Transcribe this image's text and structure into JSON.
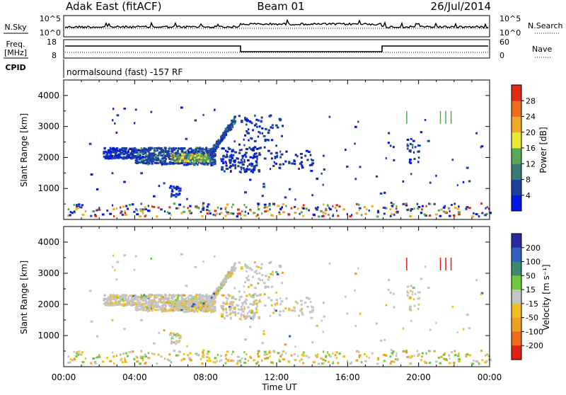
{
  "header": {
    "station": "Adak East (fitACF)",
    "beam": "Beam 01",
    "date": "26/Jul/2014"
  },
  "status_panels": {
    "nsky_label": "N.Sky",
    "nsky_ticks": [
      "10^5",
      "10^0"
    ],
    "nsearch_label": "N.Search",
    "nsearch_ticks": [
      "10^5",
      "10^0"
    ],
    "freq_label": "Freq.",
    "freq_unit": "[MHz]",
    "freq_ticks": [
      "18",
      "8"
    ],
    "nave_label": "Nave",
    "nave_ticks": [
      "60",
      "0"
    ],
    "cpid_label": "CPID",
    "cpid_text": "normalsound (fast) -157 RF"
  },
  "x_axis": {
    "label": "Time UT",
    "ticks": [
      "00:00",
      "04:00",
      "08:00",
      "12:00",
      "16:00",
      "20:00",
      "00:00"
    ]
  },
  "chart_data": [
    {
      "type": "heatmap",
      "quantity": "Power",
      "x_range_hours": [
        0,
        24
      ],
      "ylabel": "Slant Range [km]",
      "ylim": [
        0,
        4500
      ],
      "y_ticks": [
        1000,
        2000,
        3000,
        4000
      ],
      "colorbar": {
        "label": "Power [dB]",
        "tick_labels": [
          "4",
          "8",
          "12",
          "16",
          "20",
          "24",
          "28"
        ],
        "colors": [
          "#0018e0",
          "#1c3fa0",
          "#3a7a72",
          "#56a858",
          "#e6e832",
          "#f0a828",
          "#ec6c1c",
          "#e02a16"
        ]
      }
    },
    {
      "type": "heatmap",
      "quantity": "Velocity",
      "x_range_hours": [
        0,
        24
      ],
      "ylabel": "Slant Range [km]",
      "ylim": [
        0,
        4500
      ],
      "y_ticks": [
        1000,
        2000,
        3000,
        4000
      ],
      "colorbar": {
        "label": "Velocity [m s⁻¹]",
        "tick_labels": [
          "200",
          "100",
          "50",
          "15",
          "-15",
          "-50",
          "-100",
          "-200"
        ],
        "colors": [
          "#2a2aa0",
          "#3060c0",
          "#3a8a6e",
          "#6cc83c",
          "#c4c4c4",
          "#f0c020",
          "#f0a020",
          "#f06a18",
          "#e02010"
        ]
      }
    }
  ]
}
